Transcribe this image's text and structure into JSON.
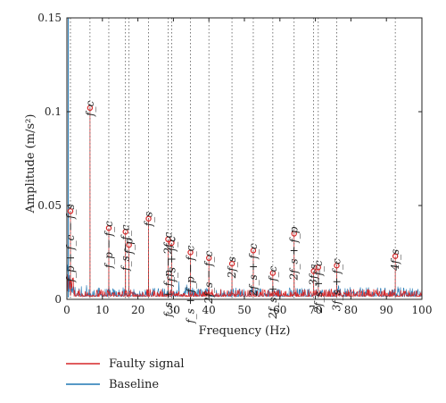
{
  "chart_data": {
    "type": "line",
    "title": "",
    "xlabel": "Frequency (Hz)",
    "ylabel": "Amplitude (m/s²)",
    "xlim": [
      0,
      100
    ],
    "ylim": [
      0,
      0.15
    ],
    "x_ticks": [
      0,
      10,
      20,
      30,
      40,
      50,
      60,
      70,
      80,
      90,
      100
    ],
    "y_ticks": [
      0,
      0.05,
      0.1,
      0.15
    ],
    "y_tick_labels": [
      "0",
      "0.05",
      "0.1",
      "0.15"
    ],
    "grid": false,
    "legend_position": "bottom-left",
    "series": [
      {
        "name": "Faulty signal",
        "color": "#d62728"
      },
      {
        "name": "Baseline",
        "color": "#1f77b4"
      }
    ],
    "peaks": [
      {
        "x": 1.0,
        "y": 0.047,
        "label": "f_p + f_c − f_s"
      },
      {
        "x": 6.5,
        "y": 0.102,
        "label": "f_c"
      },
      {
        "x": 11.8,
        "y": 0.038,
        "label": "f_p − f_c"
      },
      {
        "x": 16.5,
        "y": 0.036,
        "label": "f_s − f_c"
      },
      {
        "x": 17.5,
        "y": 0.029,
        "label": "f_p"
      },
      {
        "x": 23.0,
        "y": 0.043,
        "label": "f_s"
      },
      {
        "x": 28.5,
        "y": 0.032,
        "label": "f_s + f_p − 2f_c"
      },
      {
        "x": 29.5,
        "y": 0.03,
        "label": "f_s + f_c"
      },
      {
        "x": 34.8,
        "y": 0.025,
        "label": "f_s + f_p − f_c"
      },
      {
        "x": 40.0,
        "y": 0.022,
        "label": "2f_s − f_c"
      },
      {
        "x": 46.5,
        "y": 0.019,
        "label": "2f_s"
      },
      {
        "x": 52.5,
        "y": 0.026,
        "label": "2f_s + f_c"
      },
      {
        "x": 58.0,
        "y": 0.014,
        "label": "2f_s + f_c"
      },
      {
        "x": 64.0,
        "y": 0.035,
        "label": "2f_s + f_p"
      },
      {
        "x": 69.5,
        "y": 0.015,
        "label": "3f_s"
      },
      {
        "x": 70.8,
        "y": 0.017,
        "label": "2f_s + f_c"
      },
      {
        "x": 76.0,
        "y": 0.018,
        "label": "3f_s + f_c"
      },
      {
        "x": 92.5,
        "y": 0.023,
        "label": "4f_s"
      }
    ]
  }
}
